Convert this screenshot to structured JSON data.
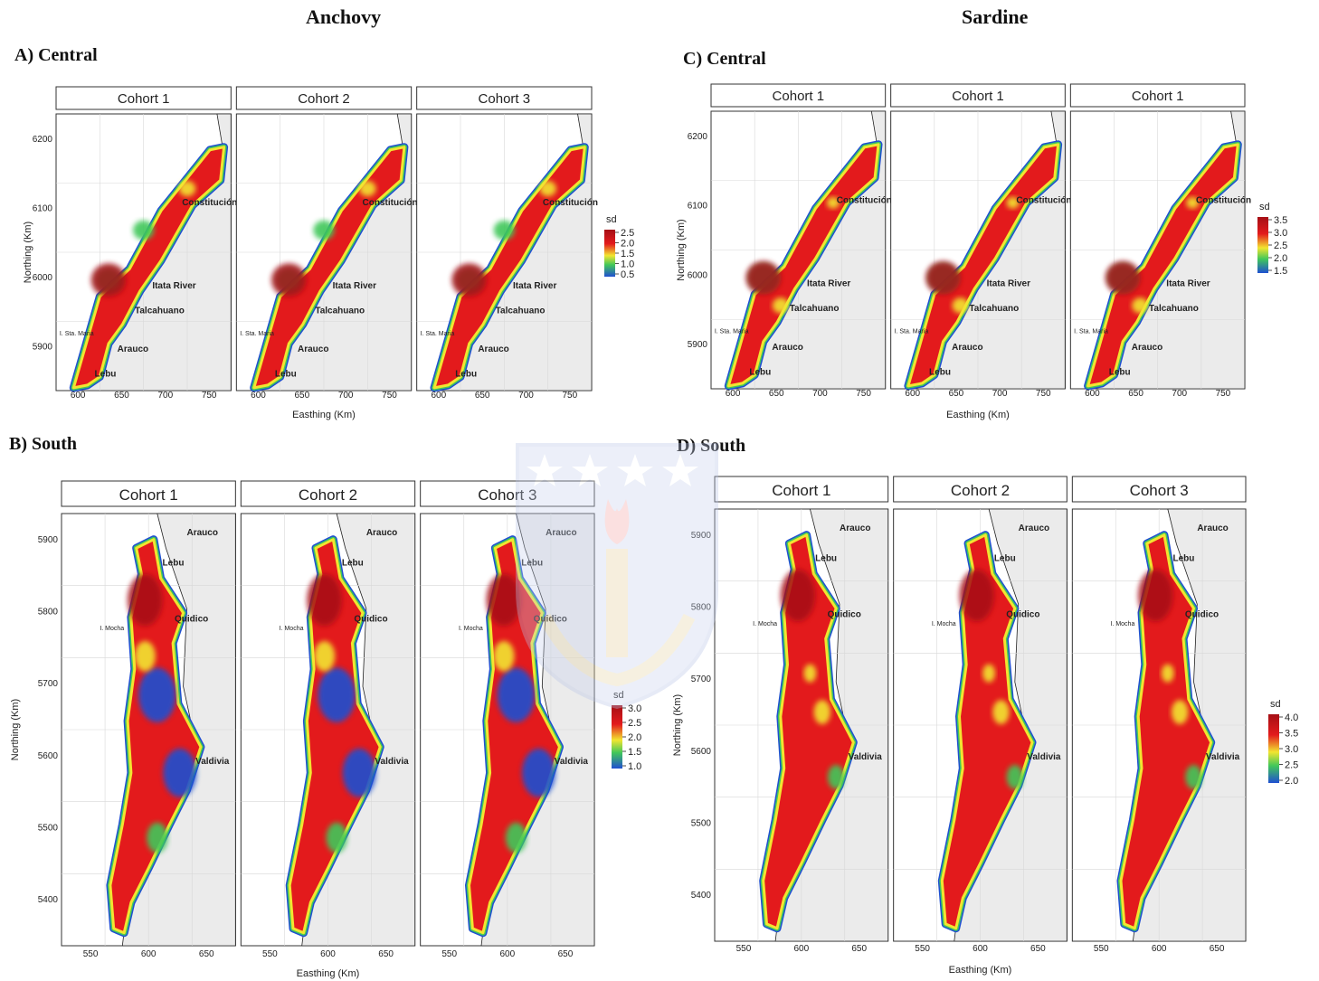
{
  "species": [
    "Anchovy",
    "Sardine"
  ],
  "panels": [
    {
      "label": "A) Central",
      "cohorts": [
        "Cohort 1",
        "Cohort 2",
        "Cohort 3"
      ],
      "ylabel": "Northing (Km)",
      "xlabel": "Easthing (Km)",
      "yticks": [
        "6200",
        "6100",
        "6000",
        "5900"
      ],
      "xticks": [
        "600",
        "650",
        "700",
        "750"
      ],
      "places": [
        "Constitución",
        "Itata River",
        "Talcahuano",
        "I. Sta. Maria",
        "Arauco",
        "Lebu"
      ],
      "legend_title": "sd",
      "legend_values": [
        "2.5",
        "2.0",
        "1.5",
        "1.0",
        "0.5"
      ]
    },
    {
      "label": "B) South",
      "cohorts": [
        "Cohort 1",
        "Cohort 2",
        "Cohort 3"
      ],
      "ylabel": "Northing (Km)",
      "xlabel": "Easthing (Km)",
      "yticks": [
        "5900",
        "5800",
        "5700",
        "5600",
        "5500",
        "5400"
      ],
      "xticks": [
        "550",
        "600",
        "650"
      ],
      "places": [
        "Arauco",
        "Lebu",
        "Quidico",
        "I. Mocha",
        "Valdivia"
      ],
      "legend_title": "sd",
      "legend_values": [
        "3.0",
        "2.5",
        "2.0",
        "1.5",
        "1.0"
      ]
    },
    {
      "label": "C) Central",
      "cohorts": [
        "Cohort 1",
        "Cohort 1",
        "Cohort 1"
      ],
      "ylabel": "Northing (Km)",
      "xlabel": "Easthing (Km)",
      "yticks": [
        "6200",
        "6100",
        "6000",
        "5900"
      ],
      "xticks": [
        "600",
        "650",
        "700",
        "750"
      ],
      "places": [
        "Constitución",
        "Itata River",
        "Talcahuano",
        "I. Sta. Maria",
        "Arauco",
        "Lebu"
      ],
      "legend_title": "sd",
      "legend_values": [
        "3.5",
        "3.0",
        "2.5",
        "2.0",
        "1.5"
      ]
    },
    {
      "label": "D) South",
      "cohorts": [
        "Cohort 1",
        "Cohort 2",
        "Cohort 3"
      ],
      "ylabel": "Northing (Km)",
      "xlabel": "Easthing (Km)",
      "yticks": [
        "5900",
        "5800",
        "5700",
        "5600",
        "5500",
        "5400"
      ],
      "xticks": [
        "550",
        "600",
        "650"
      ],
      "places": [
        "Arauco",
        "Lebu",
        "Quidico",
        "I. Mocha",
        "Valdivia"
      ],
      "legend_title": "sd",
      "legend_values": [
        "4.0",
        "3.5",
        "3.0",
        "2.5",
        "2.0"
      ]
    }
  ],
  "colors": {
    "high": "#a50f15",
    "mid_high": "#e31a1c",
    "mid": "#f2e530",
    "mid_low": "#41c75a",
    "low": "#1f4fd1",
    "land": "#ebebeb",
    "strip_fill": "#ffffff",
    "strip_border": "#333333"
  }
}
